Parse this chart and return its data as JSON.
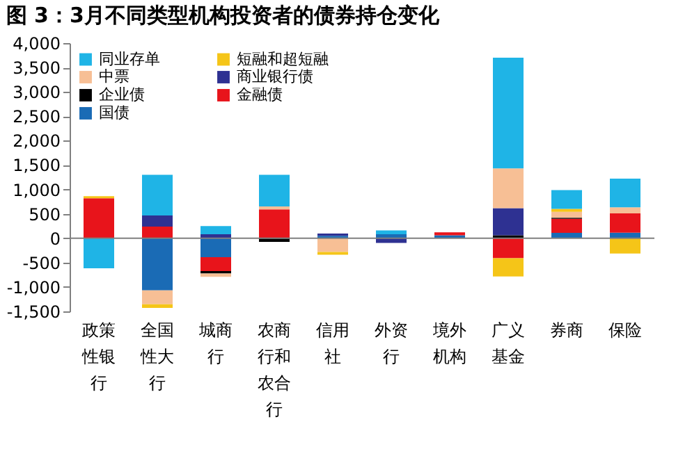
{
  "chart_data": {
    "type": "bar",
    "title": "图 3：3月不同类型机构投资者的债券持仓变化",
    "stacked": true,
    "categories": [
      "政策性银行",
      "全国性大行",
      "城商行",
      "农商行和农合行",
      "信用社",
      "外资行",
      "境外机构",
      "广义基金",
      "券商",
      "保险"
    ],
    "series": [
      {
        "name": "国债",
        "color": "#1a6bb5",
        "values": [
          null,
          -1070,
          -390,
          null,
          50,
          80,
          60,
          null,
          110,
          115
        ]
      },
      {
        "name": "金融债",
        "color": "#e8141b",
        "values": [
          820,
          240,
          -285,
          590,
          null,
          null,
          60,
          -410,
          290,
          395
        ]
      },
      {
        "name": "企业债",
        "color": "#000000",
        "values": [
          null,
          null,
          -50,
          -75,
          null,
          null,
          null,
          60,
          20,
          null
        ]
      },
      {
        "name": "商业银行债",
        "color": "#2e3192",
        "values": [
          null,
          225,
          80,
          null,
          45,
          -95,
          null,
          555,
          null,
          null
        ]
      },
      {
        "name": "中票",
        "color": "#f7bf95",
        "values": [
          null,
          -285,
          -65,
          60,
          -280,
          null,
          null,
          815,
          120,
          125
        ]
      },
      {
        "name": "短融和超短融",
        "color": "#f5c518",
        "values": [
          40,
          -75,
          null,
          null,
          -60,
          null,
          null,
          -375,
          60,
          -315
        ]
      },
      {
        "name": "同业存单",
        "color": "#1fb4e6",
        "values": [
          -615,
          835,
          170,
          650,
          null,
          80,
          null,
          2270,
          385,
          585
        ]
      }
    ],
    "ylim": [
      -1500,
      4000
    ],
    "yticks": [
      {
        "value": -1500,
        "label": "-1,500"
      },
      {
        "value": -1000,
        "label": "-1,000"
      },
      -500,
      0,
      500,
      {
        "value": 1000,
        "label": "1,000"
      },
      {
        "value": 1500,
        "label": "1,500"
      },
      {
        "value": 2000,
        "label": "2,000"
      },
      {
        "value": 2500,
        "label": "2,500"
      },
      {
        "value": 3000,
        "label": "3,000"
      },
      {
        "value": 3500,
        "label": "3,500"
      },
      {
        "value": 4000,
        "label": "4,000"
      }
    ],
    "ref_lines": [
      {
        "axis": "y",
        "value": 0,
        "color": "#808080"
      }
    ],
    "legend": "top left"
  }
}
